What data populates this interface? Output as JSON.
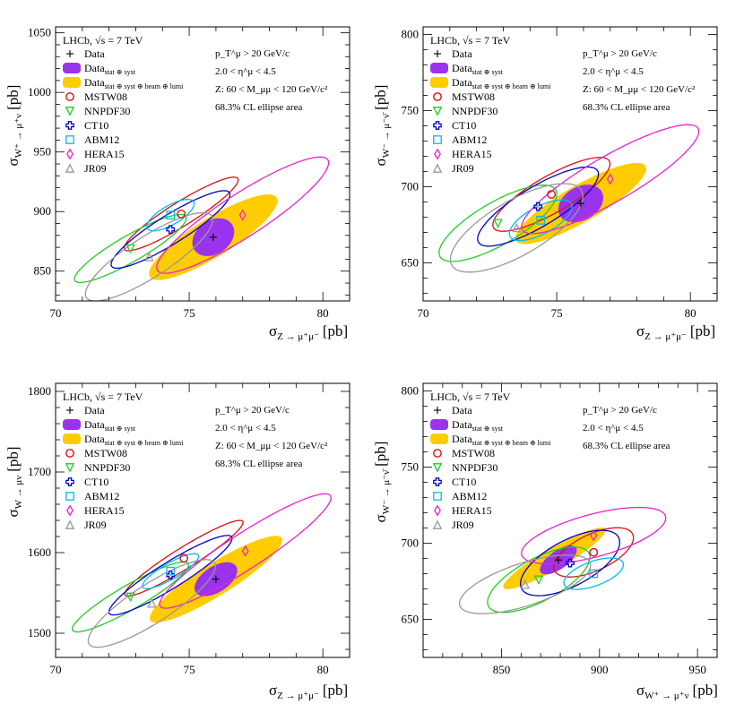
{
  "chart_data": [
    {
      "type": "scatter",
      "experiment": "LHCb, √s = 7 TeV",
      "ylabel_main": "σ",
      "ylabel_sub": "W⁺ → μ⁺ν",
      "ylabel_unit": "[pb]",
      "xlabel_main": "σ",
      "xlabel_sub": "Z → μ⁺μ⁻",
      "xlabel_unit": "[pb]",
      "xlim": [
        70,
        81
      ],
      "ylim": [
        825,
        1055
      ],
      "xticks": [
        70,
        75,
        80
      ],
      "yticks": [
        850,
        900,
        950,
        1000,
        1050
      ],
      "cuts": [
        "p_T^μ > 20 GeV/c",
        "2.0 < η^μ < 4.5",
        "Z: 60 < M_μμ < 120 GeV/c²",
        "68.3% CL ellipse area"
      ],
      "data_point": {
        "x": 75.9,
        "y": 878.5
      },
      "ellipses": [
        {
          "label": "Data stat⊕syst",
          "cx": 75.9,
          "cy": 878.5,
          "rx": 0.85,
          "ry": 14,
          "angle": 35,
          "color": "#9933ee",
          "filled": true
        },
        {
          "label": "Data stat⊕syst⊕beam⊕lumi",
          "cx": 75.9,
          "cy": 878.5,
          "rx": 2.8,
          "ry": 16,
          "angle": 32,
          "color": "#ffcc00",
          "filled": true
        },
        {
          "label": "MSTW08",
          "cx": 74.7,
          "cy": 898,
          "rx": 2.5,
          "ry": 10,
          "angle": 32,
          "color": "#dd1111"
        },
        {
          "label": "NNPDF30",
          "cx": 72.8,
          "cy": 869,
          "rx": 2.4,
          "ry": 11,
          "angle": 30,
          "color": "#22cc22"
        },
        {
          "label": "CT10",
          "cx": 74.3,
          "cy": 885,
          "rx": 2.6,
          "ry": 12,
          "angle": 32,
          "color": "#0000cc"
        },
        {
          "label": "ABM12",
          "cx": 74.3,
          "cy": 897,
          "rx": 1.0,
          "ry": 8,
          "angle": 30,
          "color": "#00bbee"
        },
        {
          "label": "HERA15",
          "cx": 77.0,
          "cy": 897,
          "rx": 3.8,
          "ry": 18,
          "angle": 33,
          "color": "#ee22cc"
        },
        {
          "label": "JR09",
          "cx": 73.5,
          "cy": 862,
          "rx": 2.8,
          "ry": 17,
          "angle": 33,
          "color": "#999999"
        }
      ],
      "points": [
        {
          "label": "MSTW08",
          "x": 74.7,
          "y": 898
        },
        {
          "label": "NNPDF30",
          "x": 72.8,
          "y": 869
        },
        {
          "label": "CT10",
          "x": 74.3,
          "y": 885
        },
        {
          "label": "ABM12",
          "x": 74.3,
          "y": 897
        },
        {
          "label": "HERA15",
          "x": 77.0,
          "y": 897
        },
        {
          "label": "JR09",
          "x": 73.5,
          "y": 862
        }
      ]
    },
    {
      "type": "scatter",
      "experiment": "LHCb, √s = 7 TeV",
      "ylabel_main": "σ",
      "ylabel_sub": "W⁻ → μ⁻ν̄",
      "ylabel_unit": "[pb]",
      "xlabel_main": "σ",
      "xlabel_sub": "Z → μ⁺μ⁻",
      "xlabel_unit": "[pb]",
      "xlim": [
        70,
        81
      ],
      "ylim": [
        625,
        805
      ],
      "xticks": [
        70,
        75,
        80
      ],
      "yticks": [
        650,
        700,
        750,
        800
      ],
      "cuts": [
        "p_T^μ > 20 GeV/c",
        "2.0 < η^μ < 4.5",
        "Z: 60 < M_μμ < 120 GeV/c²",
        "68.3% CL ellipse area"
      ],
      "data_point": {
        "x": 75.9,
        "y": 689
      },
      "ellipses": [
        {
          "label": "Data stat⊕syst",
          "cx": 75.9,
          "cy": 689,
          "rx": 0.9,
          "ry": 11,
          "angle": 30,
          "color": "#9933ee",
          "filled": true
        },
        {
          "label": "Data stat⊕syst⊕beam⊕lumi",
          "cx": 75.9,
          "cy": 689,
          "rx": 2.8,
          "ry": 12,
          "angle": 30,
          "color": "#ffcc00",
          "filled": true
        },
        {
          "label": "MSTW08",
          "cx": 74.8,
          "cy": 695,
          "rx": 2.5,
          "ry": 12,
          "angle": 30,
          "color": "#dd1111"
        },
        {
          "label": "NNPDF30",
          "cx": 72.8,
          "cy": 676,
          "rx": 2.5,
          "ry": 14,
          "angle": 30,
          "color": "#22cc22"
        },
        {
          "label": "CT10",
          "cx": 74.3,
          "cy": 687,
          "rx": 2.6,
          "ry": 13,
          "angle": 31,
          "color": "#0000cc"
        },
        {
          "label": "ABM12",
          "cx": 74.4,
          "cy": 678,
          "rx": 1.3,
          "ry": 9,
          "angle": 28,
          "color": "#00bbee"
        },
        {
          "label": "HERA15",
          "cx": 77.0,
          "cy": 705,
          "rx": 3.8,
          "ry": 15,
          "angle": 30,
          "color": "#ee22cc"
        },
        {
          "label": "JR09",
          "cx": 73.5,
          "cy": 673,
          "rx": 2.8,
          "ry": 18,
          "angle": 30,
          "color": "#999999"
        }
      ],
      "points": [
        {
          "label": "MSTW08",
          "x": 74.8,
          "y": 695
        },
        {
          "label": "NNPDF30",
          "x": 72.8,
          "y": 676
        },
        {
          "label": "CT10",
          "x": 74.3,
          "y": 687
        },
        {
          "label": "ABM12",
          "x": 74.4,
          "y": 678
        },
        {
          "label": "HERA15",
          "x": 77.0,
          "y": 705
        },
        {
          "label": "JR09",
          "x": 73.5,
          "y": 673
        }
      ]
    },
    {
      "type": "scatter",
      "experiment": "LHCb, √s = 7 TeV",
      "ylabel_main": "σ",
      "ylabel_sub": "W → μν",
      "ylabel_unit": "[pb]",
      "xlabel_main": "σ",
      "xlabel_sub": "Z → μ⁺μ⁻",
      "xlabel_unit": "[pb]",
      "xlim": [
        70,
        81
      ],
      "ylim": [
        1470,
        1810
      ],
      "xticks": [
        70,
        75,
        80
      ],
      "yticks": [
        1500,
        1600,
        1700,
        1800
      ],
      "cuts": [
        "p_T^μ > 20 GeV/c",
        "2.0 < η^μ < 4.5",
        "Z: 60 < M_μμ < 120 GeV/c²",
        "68.3% CL ellipse area"
      ],
      "data_point": {
        "x": 76.0,
        "y": 1567
      },
      "ellipses": [
        {
          "label": "Data stat⊕syst",
          "cx": 76.0,
          "cy": 1567,
          "rx": 0.9,
          "ry": 16,
          "angle": 33,
          "color": "#9933ee",
          "filled": true
        },
        {
          "label": "Data stat⊕syst⊕beam⊕lumi",
          "cx": 76.0,
          "cy": 1567,
          "rx": 2.9,
          "ry": 20,
          "angle": 32,
          "color": "#ffcc00",
          "filled": true
        },
        {
          "label": "MSTW08",
          "cx": 74.8,
          "cy": 1593,
          "rx": 2.6,
          "ry": 13,
          "angle": 32,
          "color": "#dd1111"
        },
        {
          "label": "NNPDF30",
          "cx": 72.8,
          "cy": 1545,
          "rx": 2.5,
          "ry": 15,
          "angle": 30,
          "color": "#22cc22"
        },
        {
          "label": "CT10",
          "cx": 74.3,
          "cy": 1572,
          "rx": 2.7,
          "ry": 16,
          "angle": 32,
          "color": "#0000cc"
        },
        {
          "label": "ABM12",
          "cx": 74.3,
          "cy": 1577,
          "rx": 1.2,
          "ry": 10,
          "angle": 30,
          "color": "#00bbee"
        },
        {
          "label": "HERA15",
          "cx": 77.1,
          "cy": 1602,
          "rx": 3.8,
          "ry": 22,
          "angle": 33,
          "color": "#ee22cc"
        },
        {
          "label": "JR09",
          "cx": 73.6,
          "cy": 1537,
          "rx": 2.8,
          "ry": 24,
          "angle": 33,
          "color": "#999999"
        }
      ],
      "points": [
        {
          "label": "MSTW08",
          "x": 74.8,
          "y": 1593
        },
        {
          "label": "NNPDF30",
          "x": 72.8,
          "y": 1545
        },
        {
          "label": "CT10",
          "x": 74.3,
          "y": 1572
        },
        {
          "label": "ABM12",
          "x": 74.3,
          "y": 1577
        },
        {
          "label": "HERA15",
          "x": 77.1,
          "y": 1602
        },
        {
          "label": "JR09",
          "x": 73.6,
          "y": 1537
        }
      ]
    },
    {
      "type": "scatter",
      "experiment": "LHCb, √s = 7 TeV",
      "ylabel_main": "σ",
      "ylabel_sub": "W⁻ → μ⁻ν̄",
      "ylabel_unit": "[pb]",
      "xlabel_main": "σ",
      "xlabel_sub": "W⁺ → μ⁺ν",
      "xlabel_unit": "[pb]",
      "xlim": [
        810,
        960
      ],
      "ylim": [
        625,
        805
      ],
      "xticks": [
        850,
        900,
        950
      ],
      "yticks": [
        650,
        700,
        750,
        800
      ],
      "cuts": [
        "p_T^μ > 20 GeV/c",
        "2.0 < η^μ < 4.5",
        "68.3% CL ellipse area"
      ],
      "data_point": {
        "x": 879,
        "y": 689
      },
      "ellipses": [
        {
          "label": "Data stat⊕syst",
          "cx": 879,
          "cy": 689,
          "rx": 11,
          "ry": 6,
          "angle": 35,
          "color": "#9933ee",
          "filled": true
        },
        {
          "label": "Data stat⊕syst⊕beam⊕lumi",
          "cx": 877,
          "cy": 690,
          "rx": 30,
          "ry": 7,
          "angle": 30,
          "color": "#ffcc00",
          "filled": true
        },
        {
          "label": "MSTW08",
          "cx": 897,
          "cy": 694,
          "rx": 22,
          "ry": 12,
          "angle": 25,
          "color": "#dd1111"
        },
        {
          "label": "NNPDF30",
          "cx": 869,
          "cy": 676,
          "rx": 29,
          "ry": 14,
          "angle": 28,
          "color": "#22cc22"
        },
        {
          "label": "CT10",
          "cx": 885,
          "cy": 687,
          "rx": 28,
          "ry": 15,
          "angle": 28,
          "color": "#0000cc"
        },
        {
          "label": "ABM12",
          "cx": 897,
          "cy": 680,
          "rx": 16,
          "ry": 8,
          "angle": 20,
          "color": "#00bbee"
        },
        {
          "label": "HERA15",
          "cx": 897,
          "cy": 705,
          "rx": 38,
          "ry": 14,
          "angle": 15,
          "color": "#ee22cc"
        },
        {
          "label": "JR09",
          "cx": 862,
          "cy": 673,
          "rx": 35,
          "ry": 14,
          "angle": 18,
          "color": "#999999"
        }
      ],
      "points": [
        {
          "label": "MSTW08",
          "x": 897,
          "y": 694
        },
        {
          "label": "NNPDF30",
          "x": 869,
          "y": 676
        },
        {
          "label": "CT10",
          "x": 885,
          "y": 687
        },
        {
          "label": "ABM12",
          "x": 897,
          "y": 680
        },
        {
          "label": "HERA15",
          "x": 897,
          "y": 705
        },
        {
          "label": "JR09",
          "x": 862,
          "y": 673
        }
      ]
    }
  ],
  "legend": [
    {
      "key": "data",
      "label": "Data",
      "sub": "",
      "marker": "plus",
      "color": "#000000"
    },
    {
      "key": "stat",
      "label": "Data",
      "sub": "stat ⊕ syst",
      "marker": "box",
      "color": "#9933ee"
    },
    {
      "key": "total",
      "label": "Data",
      "sub": "stat ⊕ syst ⊕ beam ⊕ lumi",
      "marker": "box",
      "color": "#ffcc00"
    },
    {
      "key": "mstw",
      "label": "MSTW08",
      "sub": "",
      "marker": "circle",
      "color": "#dd1111"
    },
    {
      "key": "nnpdf",
      "label": "NNPDF30",
      "sub": "",
      "marker": "triangle-down",
      "color": "#22cc22"
    },
    {
      "key": "ct10",
      "label": "CT10",
      "sub": "",
      "marker": "cross",
      "color": "#0000cc"
    },
    {
      "key": "abm",
      "label": "ABM12",
      "sub": "",
      "marker": "square",
      "color": "#00bbee"
    },
    {
      "key": "hera",
      "label": "HERA15",
      "sub": "",
      "marker": "diamond",
      "color": "#ee22cc"
    },
    {
      "key": "jr09",
      "label": "JR09",
      "sub": "",
      "marker": "triangle-up",
      "color": "#999999"
    }
  ]
}
